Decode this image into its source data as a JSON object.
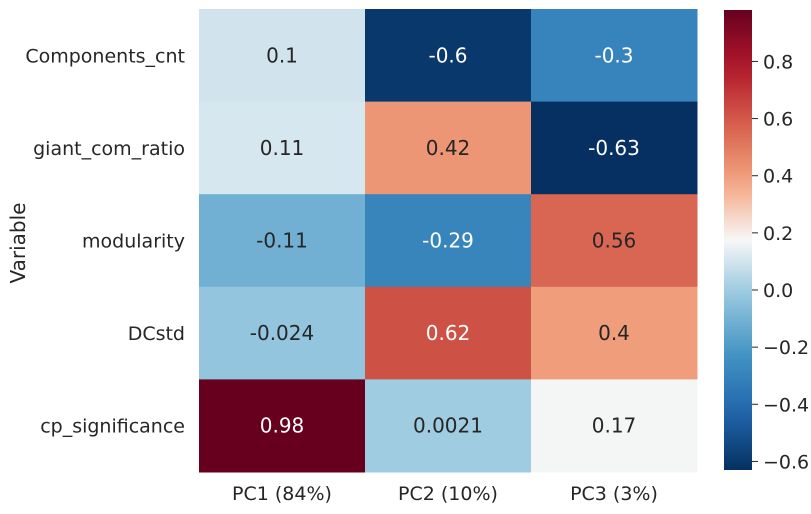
{
  "chart_data": {
    "type": "heatmap",
    "title": "",
    "xlabel": "",
    "ylabel": "Variable",
    "x_categories": [
      "PC1 (84%)",
      "PC2 (10%)",
      "PC3 (3%)"
    ],
    "y_categories": [
      "Components_cnt",
      "giant_com_ratio",
      "modularity",
      "DCstd",
      "cp_significance"
    ],
    "values": [
      [
        0.1,
        -0.6,
        -0.3
      ],
      [
        0.11,
        0.42,
        -0.63
      ],
      [
        -0.11,
        -0.29,
        0.56
      ],
      [
        -0.024,
        0.62,
        0.4
      ],
      [
        0.98,
        0.0021,
        0.17
      ]
    ],
    "cell_labels": [
      [
        "0.1",
        "-0.6",
        "-0.3"
      ],
      [
        "0.11",
        "0.42",
        "-0.63"
      ],
      [
        "-0.11",
        "-0.29",
        "0.56"
      ],
      [
        "-0.024",
        "0.62",
        "0.4"
      ],
      [
        "0.98",
        "0.0021",
        "0.17"
      ]
    ],
    "colormap": "RdBu_r",
    "vmin": -0.63,
    "vmax": 0.98,
    "colorbar_ticks": [
      0.8,
      0.6,
      0.4,
      0.2,
      0.0,
      -0.2,
      -0.4,
      -0.6
    ],
    "colorbar_tick_labels": [
      "0.8",
      "0.6",
      "0.4",
      "0.2",
      "0.0",
      "−0.2",
      "−0.4",
      "−0.6"
    ],
    "grid": false,
    "legend": "colorbar-right"
  }
}
